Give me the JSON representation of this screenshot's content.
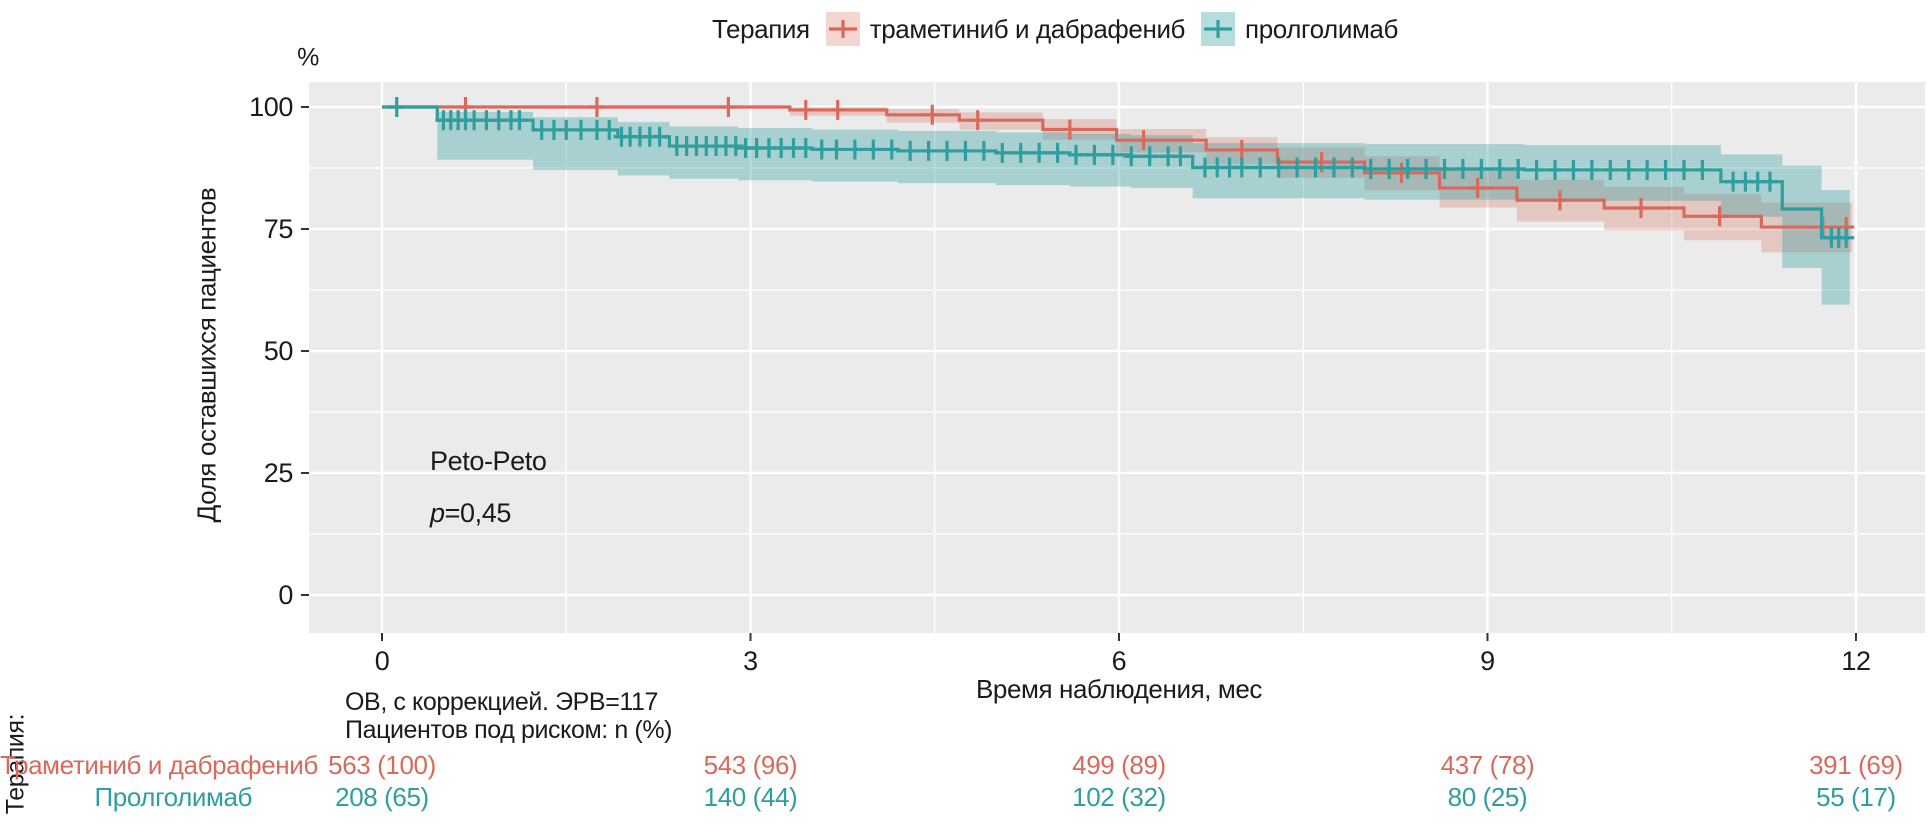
{
  "legend": {
    "title": "Терапия"
  },
  "axes": {
    "y_unit": "%",
    "ylabel": "Доля оставшихся пациентов",
    "xlabel": "Время наблюдения, мес",
    "xticks": [
      0,
      3,
      6,
      9,
      12
    ],
    "yticks": [
      0,
      25,
      50,
      75,
      100
    ]
  },
  "annotation": {
    "test": "Peto-Peto",
    "p_prefix": "p",
    "p_value": "=0,45"
  },
  "risk_table": {
    "axis_label": "Терапия:",
    "header_line1": "ОВ, с коррекцией. ЭРВ=117",
    "header_line2": "Пациентов под риском: n (%)",
    "time_points": [
      0,
      3,
      6,
      9,
      12
    ],
    "rows": [
      {
        "label": "Траметиниб и дабрафениб",
        "color": "#D96A5B",
        "values": [
          "563 (100)",
          "543 (96)",
          "499 (89)",
          "437 (78)",
          "391 (69)"
        ]
      },
      {
        "label": "Пролголимаб",
        "color": "#2F9E9F",
        "values": [
          "208 (65)",
          "140 (44)",
          "102 (32)",
          "80 (25)",
          "55 (17)"
        ]
      }
    ]
  },
  "colors": {
    "panel_bg": "#EBEBEB",
    "grid": "#FFFFFF",
    "tick": "#333333",
    "text": "#1B1B1B"
  },
  "chart_data": {
    "type": "line",
    "subtype": "kaplan_meier_step_with_ci",
    "title": "",
    "xlabel": "Время наблюдения, мес",
    "ylabel": "Доля оставшихся пациентов, %",
    "xlim": [
      -0.6,
      12.55
    ],
    "ylim": [
      -5,
      105
    ],
    "xticks": [
      0,
      3,
      6,
      9,
      12
    ],
    "yticks": [
      0,
      25,
      50,
      75,
      100
    ],
    "xticks_minor": [
      1.5,
      4.5,
      7.5,
      10.5
    ],
    "yticks_minor": [
      12.5,
      37.5,
      62.5,
      87.5
    ],
    "grid": true,
    "legend_position": "top",
    "series": [
      {
        "name": "траметиниб и дабрафениб",
        "color": "#D96A5B",
        "band_opacity": 0.28,
        "t_end": 11.97,
        "steps": [
          [
            0,
            100
          ],
          [
            3.32,
            99.4
          ],
          [
            4.11,
            98.4
          ],
          [
            4.7,
            97.3
          ],
          [
            5.38,
            95.4
          ],
          [
            5.98,
            93.2
          ],
          [
            6.71,
            91.2
          ],
          [
            7.29,
            88.7
          ],
          [
            8.0,
            86.5
          ],
          [
            8.61,
            83.4
          ],
          [
            9.24,
            80.9
          ],
          [
            9.95,
            79.3
          ],
          [
            10.6,
            77.6
          ],
          [
            11.23,
            75.4
          ],
          [
            11.97,
            75.4
          ]
        ],
        "censor_times": [
          0.68,
          1.75,
          2.82,
          3.45,
          3.71,
          4.48,
          4.85,
          5.6,
          6.2,
          7.0,
          7.65,
          8.3,
          8.92,
          9.59,
          10.25,
          10.89,
          11.73,
          11.92
        ],
        "band": [
          [
            0,
            100,
            100
          ],
          [
            3.32,
            98.2,
            100
          ],
          [
            4.11,
            96.8,
            99.6
          ],
          [
            4.7,
            95.3,
            98.9
          ],
          [
            5.38,
            93.3,
            97.5
          ],
          [
            5.98,
            90.7,
            95.5
          ],
          [
            6.71,
            88.3,
            93.8
          ],
          [
            7.29,
            85.5,
            91.7
          ],
          [
            8.0,
            82.9,
            89.9
          ],
          [
            8.61,
            79.4,
            87.2
          ],
          [
            9.24,
            76.5,
            85.1
          ],
          [
            9.95,
            74.7,
            83.6
          ],
          [
            10.6,
            72.7,
            82.2
          ],
          [
            11.23,
            70.2,
            80.4
          ],
          [
            11.97,
            70.2,
            80.4
          ]
        ]
      },
      {
        "name": "пролголимаб",
        "color": "#2F9E9F",
        "band_opacity": 0.35,
        "t_end": 11.95,
        "steps": [
          [
            0,
            100
          ],
          [
            0.45,
            97.3
          ],
          [
            1.23,
            95.3
          ],
          [
            1.92,
            93.9
          ],
          [
            2.34,
            92.0
          ],
          [
            2.9,
            91.6
          ],
          [
            3.5,
            91.3
          ],
          [
            4.2,
            91.0
          ],
          [
            5.0,
            90.6
          ],
          [
            5.6,
            90.2
          ],
          [
            6.1,
            89.9
          ],
          [
            6.6,
            87.6
          ],
          [
            8.0,
            87.3
          ],
          [
            9.3,
            87.1
          ],
          [
            10.9,
            84.7
          ],
          [
            11.4,
            79.1
          ],
          [
            11.72,
            73.2
          ],
          [
            11.95,
            73.2
          ]
        ],
        "censor_times": [
          0.12,
          0.5,
          0.56,
          0.62,
          0.68,
          0.75,
          0.85,
          0.95,
          1.05,
          1.12,
          1.3,
          1.4,
          1.5,
          1.62,
          1.75,
          1.85,
          1.95,
          2.02,
          2.1,
          2.18,
          2.26,
          2.4,
          2.48,
          2.56,
          2.64,
          2.72,
          2.8,
          2.88,
          2.96,
          3.05,
          3.15,
          3.25,
          3.35,
          3.45,
          3.58,
          3.7,
          3.85,
          4.0,
          4.15,
          4.3,
          4.45,
          4.6,
          4.75,
          4.9,
          5.05,
          5.2,
          5.35,
          5.5,
          5.65,
          5.8,
          5.95,
          6.1,
          6.25,
          6.4,
          6.5,
          6.7,
          6.8,
          6.9,
          7.0,
          7.15,
          7.3,
          7.45,
          7.6,
          7.75,
          7.9,
          8.05,
          8.2,
          8.35,
          8.5,
          8.65,
          8.8,
          8.95,
          9.1,
          9.25,
          9.4,
          9.55,
          9.7,
          9.85,
          10.0,
          10.15,
          10.3,
          10.45,
          10.6,
          10.75,
          11.0,
          11.1,
          11.2,
          11.3,
          11.8,
          11.86,
          11.92
        ],
        "band": [
          [
            0,
            100,
            100
          ],
          [
            0.45,
            89.2,
            99.0
          ],
          [
            1.23,
            87.1,
            97.9
          ],
          [
            1.92,
            86.0,
            96.9
          ],
          [
            2.34,
            85.3,
            96.0
          ],
          [
            2.9,
            85.0,
            95.7
          ],
          [
            3.5,
            84.7,
            95.4
          ],
          [
            4.2,
            84.4,
            95.1
          ],
          [
            5.0,
            84.0,
            94.8
          ],
          [
            5.6,
            83.7,
            94.5
          ],
          [
            6.1,
            83.4,
            94.2
          ],
          [
            6.6,
            81.3,
            92.6
          ],
          [
            8.0,
            81.0,
            92.4
          ],
          [
            9.3,
            80.8,
            92.2
          ],
          [
            10.9,
            77.5,
            90.3
          ],
          [
            11.4,
            67.0,
            88.0
          ],
          [
            11.72,
            59.5,
            83.0
          ],
          [
            11.95,
            59.5,
            83.0
          ]
        ]
      }
    ],
    "annotations": [
      {
        "text": "Peto-Peto"
      },
      {
        "text": "p=0,45"
      }
    ]
  }
}
